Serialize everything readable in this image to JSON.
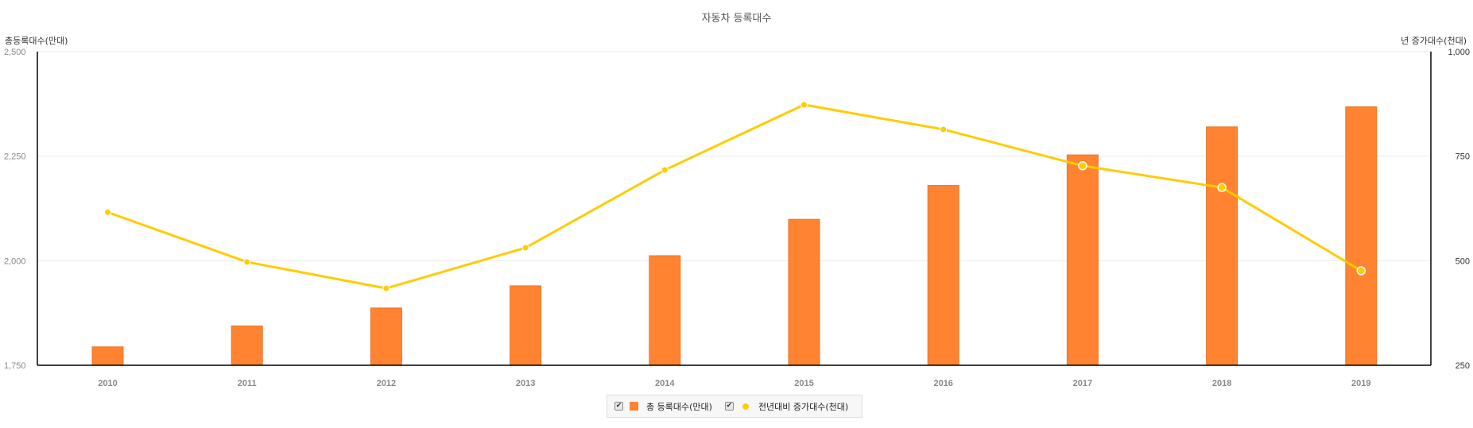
{
  "chart": {
    "title": "자동차 등록대수",
    "left_axis_title": "총등록대수(만대)",
    "right_axis_title": "년 증가대수(천대)",
    "left_ticks": [
      "2,500",
      "2,250",
      "2,000",
      "1,750"
    ],
    "right_ticks": [
      "1,000",
      "750",
      "500",
      "250"
    ],
    "legend": {
      "bar_label": "총 등록대수(만대)",
      "line_label": "전년대비 증가대수(천대)",
      "checkbox_glyph": "✔"
    },
    "colors": {
      "bar": "#FF8330",
      "bar_border": "#E8772B",
      "line": "#FFCC00",
      "grid": "#E8E8E8",
      "axis": "#000000",
      "tick_text": "#888888"
    }
  },
  "chart_data": {
    "type": "bar",
    "title": "자동차 등록대수",
    "xlabel": "",
    "ylabel": "총등록대수(만대)",
    "y2label": "년 증가대수(천대)",
    "categories": [
      "2010",
      "2011",
      "2012",
      "2013",
      "2014",
      "2015",
      "2016",
      "2017",
      "2018",
      "2019"
    ],
    "series": [
      {
        "name": "총 등록대수(만대)",
        "type": "bar",
        "axis": "left",
        "values": [
          1794,
          1844,
          1887,
          1940,
          2012,
          2099,
          2180,
          2253,
          2320,
          2368
        ]
      },
      {
        "name": "전년대비 증가대수(천대)",
        "type": "line",
        "axis": "right",
        "values": [
          616,
          497,
          434,
          531,
          717,
          873,
          814,
          727,
          675,
          476
        ]
      }
    ],
    "ylim": [
      1750,
      2500
    ],
    "y2lim": [
      250,
      1000
    ],
    "yticks": [
      1750,
      2000,
      2250,
      2500
    ],
    "y2ticks": [
      250,
      500,
      750,
      1000
    ],
    "grid": true,
    "legend_position": "bottom"
  }
}
